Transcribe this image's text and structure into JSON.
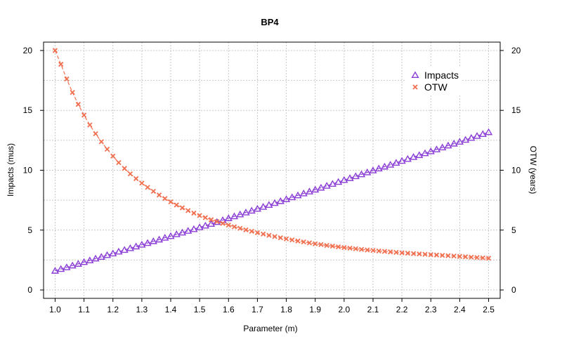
{
  "chart_data": {
    "type": "line",
    "title": "BP4",
    "xlabel": "Parameter (m)",
    "ylabel_left": "Impacts  (mus)",
    "ylabel_right": "OTW (years)",
    "xlim": [
      0.96,
      2.54
    ],
    "ylim": [
      -0.7,
      20.7
    ],
    "x_ticks": [
      "1.0",
      "1.1",
      "1.2",
      "1.3",
      "1.4",
      "1.5",
      "1.6",
      "1.7",
      "1.8",
      "1.9",
      "2.0",
      "2.1",
      "2.2",
      "2.3",
      "2.4",
      "2.5"
    ],
    "x_tick_values": [
      1.0,
      1.1,
      1.2,
      1.3,
      1.4,
      1.5,
      1.6,
      1.7,
      1.8,
      1.9,
      2.0,
      2.1,
      2.2,
      2.3,
      2.4,
      2.5
    ],
    "y_ticks": [
      "0",
      "5",
      "10",
      "15",
      "20"
    ],
    "y_tick_values": [
      0,
      5,
      10,
      15,
      20
    ],
    "grid": true,
    "legend_position": "top-right",
    "x_start": 1.0,
    "x_step": 0.02,
    "series": [
      {
        "name": "Impacts",
        "axis": "left",
        "marker": "triangle",
        "color": "#8b3fd6",
        "values": [
          1.6,
          1.75,
          1.89,
          2.04,
          2.18,
          2.33,
          2.47,
          2.62,
          2.76,
          2.91,
          3.05,
          3.2,
          3.34,
          3.49,
          3.63,
          3.78,
          3.92,
          4.07,
          4.21,
          4.36,
          4.5,
          4.65,
          4.79,
          4.94,
          5.08,
          5.23,
          5.37,
          5.52,
          5.67,
          5.83,
          5.99,
          6.15,
          6.31,
          6.47,
          6.62,
          6.78,
          6.94,
          7.1,
          7.26,
          7.42,
          7.58,
          7.74,
          7.9,
          8.06,
          8.22,
          8.38,
          8.54,
          8.7,
          8.86,
          9.02,
          9.18,
          9.34,
          9.5,
          9.66,
          9.82,
          9.98,
          10.14,
          10.3,
          10.46,
          10.62,
          10.78,
          10.94,
          11.1,
          11.26,
          11.42,
          11.58,
          11.74,
          11.9,
          12.06,
          12.22,
          12.38,
          12.54,
          12.7,
          12.86,
          13.02,
          13.18
        ]
      },
      {
        "name": "OTW",
        "axis": "right",
        "marker": "x",
        "color": "#f07050",
        "values": [
          20.0,
          18.85,
          17.62,
          16.5,
          15.5,
          14.6,
          13.78,
          13.05,
          12.38,
          11.76,
          11.18,
          10.64,
          10.15,
          9.7,
          9.3,
          8.92,
          8.57,
          8.24,
          7.93,
          7.64,
          7.36,
          7.1,
          6.86,
          6.63,
          6.42,
          6.22,
          6.04,
          5.87,
          5.71,
          5.56,
          5.42,
          5.28,
          5.15,
          5.02,
          4.9,
          4.78,
          4.67,
          4.56,
          4.46,
          4.36,
          4.27,
          4.18,
          4.09,
          4.01,
          3.93,
          3.86,
          3.79,
          3.72,
          3.66,
          3.6,
          3.54,
          3.49,
          3.44,
          3.39,
          3.34,
          3.3,
          3.26,
          3.22,
          3.18,
          3.14,
          3.1,
          3.07,
          3.04,
          3.01,
          2.98,
          2.95,
          2.92,
          2.89,
          2.86,
          2.83,
          2.8,
          2.77,
          2.74,
          2.71,
          2.68,
          2.65
        ]
      }
    ]
  }
}
